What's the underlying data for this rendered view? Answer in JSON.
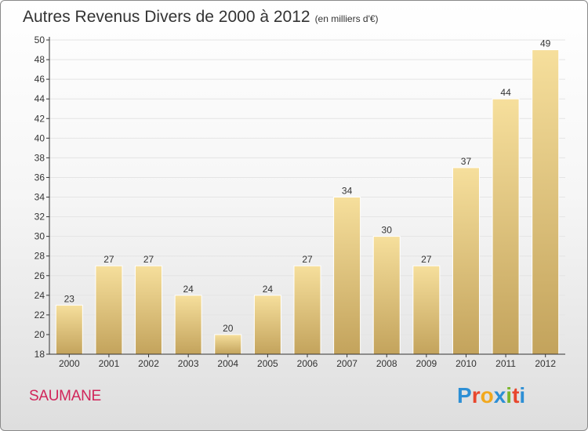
{
  "title": "Autres Revenus Divers de 2000 à 2012",
  "subtitle": "(en milliers d'€)",
  "place": "SAUMANE",
  "brand": {
    "letters": [
      {
        "ch": "P",
        "color": "#2d8fd5"
      },
      {
        "ch": "r",
        "color": "#e8462d"
      },
      {
        "ch": "o",
        "color": "#f2a81d"
      },
      {
        "ch": "x",
        "color": "#2d8fd5"
      },
      {
        "ch": "i",
        "color": "#7ab52a"
      },
      {
        "ch": "t",
        "color": "#e8462d"
      },
      {
        "ch": "i",
        "color": "#2d8fd5"
      }
    ]
  },
  "colors": {
    "bar_top": "#f6df9c",
    "bar_bottom": "#c3a35c",
    "bar_edge": "#ffffff",
    "grid": "#e4e4e4",
    "axis": "#333333"
  },
  "chart_data": {
    "type": "bar",
    "title": "Autres Revenus Divers de 2000 à 2012",
    "subtitle": "(en milliers d'€)",
    "categories": [
      "2000",
      "2001",
      "2002",
      "2003",
      "2004",
      "2005",
      "2006",
      "2007",
      "2008",
      "2009",
      "2010",
      "2011",
      "2012"
    ],
    "values": [
      23,
      27,
      27,
      24,
      20,
      24,
      27,
      34,
      30,
      27,
      37,
      44,
      49
    ],
    "xlabel": "",
    "ylabel": "",
    "ylim": [
      18,
      50
    ],
    "yticks": [
      18,
      20,
      22,
      24,
      26,
      28,
      30,
      32,
      34,
      36,
      38,
      40,
      42,
      44,
      46,
      48,
      50
    ],
    "grid": true,
    "data_labels": true
  }
}
